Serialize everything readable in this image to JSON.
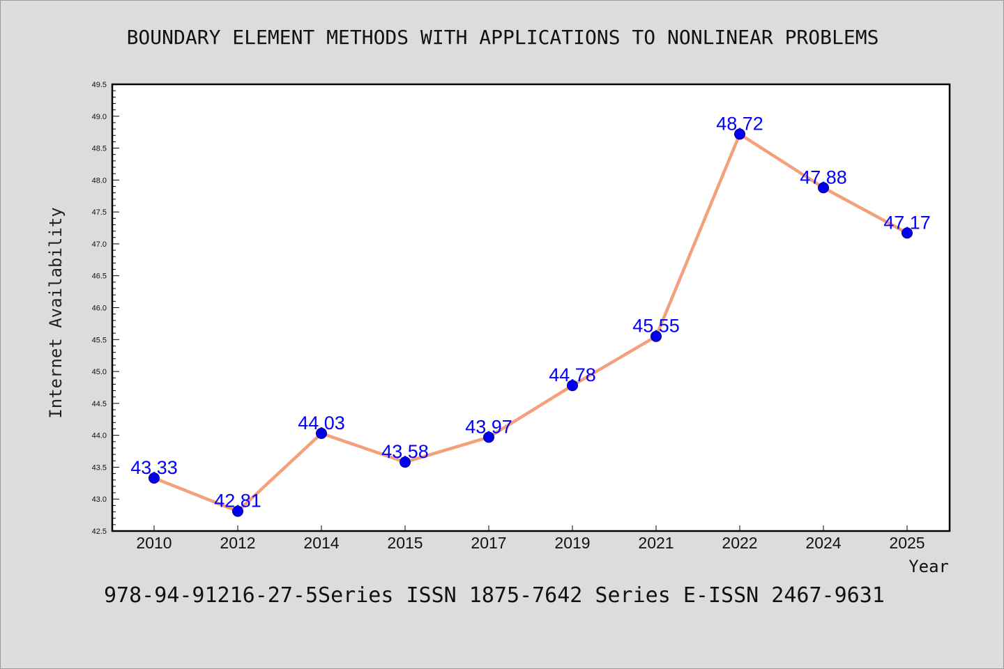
{
  "chart_data": {
    "type": "line",
    "title": "BOUNDARY ELEMENT METHODS WITH APPLICATIONS TO NONLINEAR PROBLEMS",
    "subtitle": "978-94-91216-27-5Series ISSN 1875-7642 Series E-ISSN 2467-9631",
    "xlabel": "Year",
    "ylabel": "Internet Availability",
    "categories": [
      "2010",
      "2012",
      "2014",
      "2015",
      "2017",
      "2019",
      "2021",
      "2022",
      "2024",
      "2025"
    ],
    "y_ticks": [
      "42.5",
      "43.0",
      "43.5",
      "44.0",
      "44.5",
      "45.0",
      "45.5",
      "46.0",
      "46.5",
      "47.0",
      "47.5",
      "48.0",
      "48.5",
      "49.0",
      "49.5"
    ],
    "ylim": [
      42.5,
      49.5
    ],
    "series": [
      {
        "values": [
          43.33,
          42.81,
          44.03,
          43.58,
          43.97,
          44.78,
          45.55,
          48.72,
          47.88,
          47.17
        ],
        "labels": [
          "43.33",
          "42.81",
          "44.03",
          "43.58",
          "43.97",
          "44.78",
          "45.55",
          "48.72",
          "47.88",
          "47.17"
        ]
      }
    ],
    "grid": false,
    "colors": {
      "background": "#dcdcdc",
      "plot_background": "#ffffff",
      "line": "#f4a07c",
      "marker": "#0000ee",
      "data_label": "#0000ff",
      "text": "#111111"
    }
  }
}
